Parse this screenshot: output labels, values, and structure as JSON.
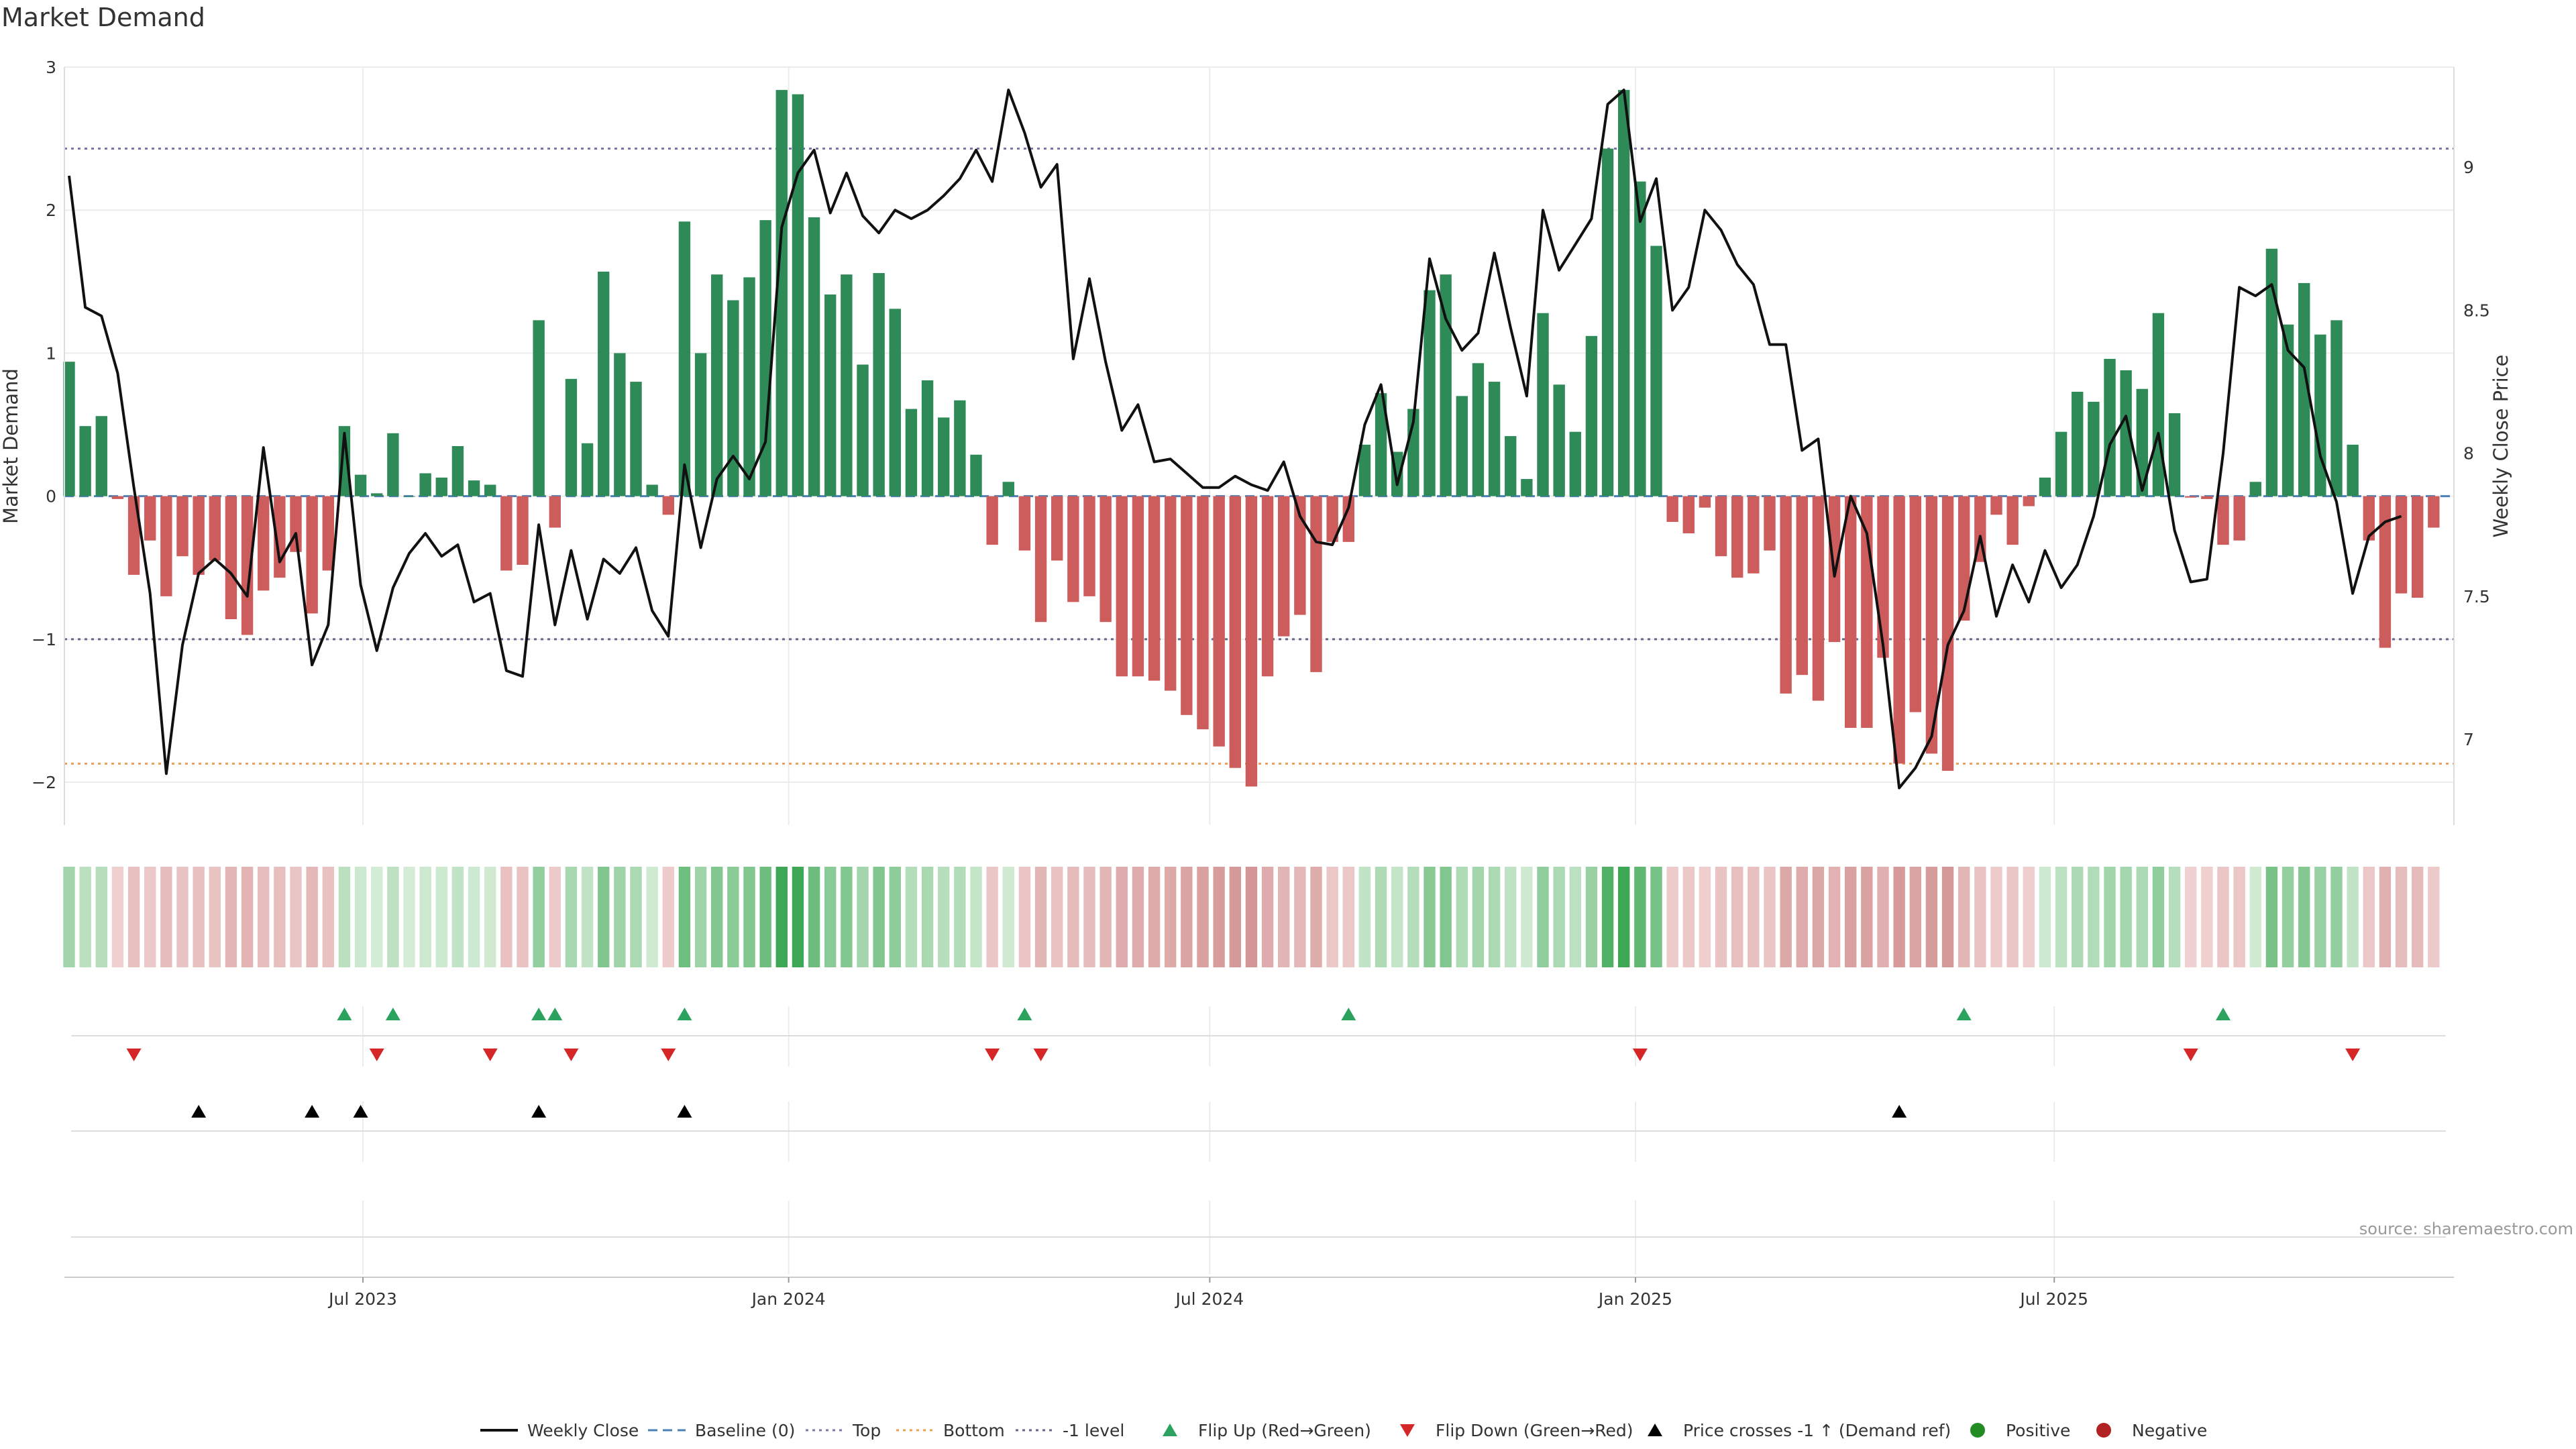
{
  "chart_data": {
    "type": "bar",
    "title": "Market Demand",
    "ylabel_left": "Market Demand",
    "ylabel_right": "Weekly Close Price",
    "ylim_left": [
      -2.3,
      3
    ],
    "ylim_right": [
      6.7,
      9.35
    ],
    "left_ticks": [
      {
        "value": 3,
        "label": "3"
      },
      {
        "value": 2,
        "label": "2"
      },
      {
        "value": 1,
        "label": "1"
      },
      {
        "value": 0,
        "label": "0"
      },
      {
        "value": -1,
        "label": "−1"
      },
      {
        "value": -2,
        "label": "−2"
      }
    ],
    "right_ticks": [
      {
        "value": 9,
        "label": "9"
      },
      {
        "value": 8.5,
        "label": "8.5"
      },
      {
        "value": 8,
        "label": "8"
      },
      {
        "value": 7.5,
        "label": "7.5"
      },
      {
        "value": 7,
        "label": "7"
      }
    ],
    "x_ticks": [
      {
        "date": "2023-07-01",
        "label": "Jul 2023"
      },
      {
        "date": "2024-01-01",
        "label": "Jan 2024"
      },
      {
        "date": "2024-07-01",
        "label": "Jul 2024"
      },
      {
        "date": "2025-01-01",
        "label": "Jan 2025"
      },
      {
        "date": "2025-07-01",
        "label": "Jul 2025"
      }
    ],
    "reference_lines": [
      {
        "name": "Top",
        "value": 2.43,
        "color": "#7777aa",
        "dash": "dot"
      },
      {
        "name": "-1 level",
        "value": -1,
        "color": "#666688",
        "dash": "dot"
      },
      {
        "name": "Bottom",
        "value": -1.87,
        "color": "#e8a05a",
        "dash": "dot"
      },
      {
        "name": "Baseline (0)",
        "value": 0,
        "color": "#4d7fb5",
        "dash": "dash"
      }
    ],
    "weeks": [
      "2023-02-24",
      "2023-03-03",
      "2023-03-10",
      "2023-03-17",
      "2023-03-24",
      "2023-03-31",
      "2023-04-07",
      "2023-04-14",
      "2023-04-21",
      "2023-04-28",
      "2023-05-05",
      "2023-05-12",
      "2023-05-19",
      "2023-05-26",
      "2023-06-02",
      "2023-06-09",
      "2023-06-16",
      "2023-06-23",
      "2023-06-30",
      "2023-07-07",
      "2023-07-14",
      "2023-07-21",
      "2023-07-28",
      "2023-08-04",
      "2023-08-11",
      "2023-08-18",
      "2023-08-25",
      "2023-09-01",
      "2023-09-08",
      "2023-09-15",
      "2023-09-22",
      "2023-09-29",
      "2023-10-06",
      "2023-10-13",
      "2023-10-20",
      "2023-10-27",
      "2023-11-03",
      "2023-11-10",
      "2023-11-17",
      "2023-11-24",
      "2023-12-01",
      "2023-12-08",
      "2023-12-15",
      "2023-12-22",
      "2023-12-29",
      "2024-01-05",
      "2024-01-12",
      "2024-01-19",
      "2024-01-26",
      "2024-02-02",
      "2024-02-09",
      "2024-02-16",
      "2024-02-23",
      "2024-03-01",
      "2024-03-08",
      "2024-03-15",
      "2024-03-22",
      "2024-03-29",
      "2024-04-05",
      "2024-04-12",
      "2024-04-19",
      "2024-04-26",
      "2024-05-03",
      "2024-05-10",
      "2024-05-17",
      "2024-05-24",
      "2024-05-31",
      "2024-06-07",
      "2024-06-14",
      "2024-06-21",
      "2024-06-28",
      "2024-07-05",
      "2024-07-12",
      "2024-07-19",
      "2024-07-26",
      "2024-08-02",
      "2024-08-09",
      "2024-08-16",
      "2024-08-23",
      "2024-08-30",
      "2024-09-06",
      "2024-09-13",
      "2024-09-20",
      "2024-09-27",
      "2024-10-04",
      "2024-10-11",
      "2024-10-18",
      "2024-10-25",
      "2024-11-01",
      "2024-11-08",
      "2024-11-15",
      "2024-11-22",
      "2024-11-29",
      "2024-12-06",
      "2024-12-13",
      "2024-12-20",
      "2024-12-27",
      "2025-01-03",
      "2025-01-10",
      "2025-01-17",
      "2025-01-24",
      "2025-01-31",
      "2025-02-07",
      "2025-02-14",
      "2025-02-21",
      "2025-02-28",
      "2025-03-07",
      "2025-03-14",
      "2025-03-21",
      "2025-03-28",
      "2025-04-04",
      "2025-04-11",
      "2025-04-18",
      "2025-04-25",
      "2025-05-02",
      "2025-05-09",
      "2025-05-16",
      "2025-05-23",
      "2025-05-30",
      "2025-06-06",
      "2025-06-13",
      "2025-06-20",
      "2025-06-27",
      "2025-07-04",
      "2025-07-11",
      "2025-07-18",
      "2025-07-25",
      "2025-08-01",
      "2025-08-08",
      "2025-08-15",
      "2025-08-22",
      "2025-08-29",
      "2025-09-05",
      "2025-09-12",
      "2025-09-19",
      "2025-09-26",
      "2025-10-03",
      "2025-10-10",
      "2025-10-17",
      "2025-10-24",
      "2025-10-31",
      "2025-11-07",
      "2025-11-14",
      "2025-11-21",
      "2025-11-28",
      "2025-12-05",
      "2025-12-12",
      "2025-12-19"
    ],
    "demand": [
      0.94,
      0.49,
      0.56,
      -0.02,
      -0.55,
      -0.31,
      -0.7,
      -0.42,
      -0.55,
      -0.45,
      -0.86,
      -0.97,
      -0.66,
      -0.57,
      -0.39,
      -0.82,
      -0.52,
      0.49,
      0.15,
      0.02,
      0.44,
      0.0,
      0.16,
      0.13,
      0.35,
      0.11,
      0.08,
      -0.52,
      -0.48,
      1.23,
      -0.22,
      0.82,
      0.37,
      1.57,
      1.0,
      0.8,
      0.08,
      -0.13,
      1.92,
      1.0,
      1.55,
      1.37,
      1.53,
      1.93,
      2.84,
      2.81,
      1.95,
      1.41,
      1.55,
      0.92,
      1.56,
      1.31,
      0.61,
      0.81,
      0.55,
      0.67,
      0.29,
      -0.34,
      0.1,
      -0.38,
      -0.88,
      -0.45,
      -0.74,
      -0.7,
      -0.88,
      -1.26,
      -1.26,
      -1.29,
      -1.36,
      -1.53,
      -1.63,
      -1.75,
      -1.9,
      -2.03,
      -1.26,
      -0.98,
      -0.83,
      -1.23,
      -0.32,
      -0.32,
      0.36,
      0.72,
      0.31,
      0.61,
      1.44,
      1.55,
      0.7,
      0.93,
      0.8,
      0.42,
      0.12,
      1.28,
      0.78,
      0.45,
      1.12,
      2.43,
      2.84,
      2.2,
      1.75,
      -0.18,
      -0.26,
      -0.08,
      -0.42,
      -0.57,
      -0.54,
      -0.38,
      -1.38,
      -1.25,
      -1.43,
      -1.02,
      -1.62,
      -1.62,
      -1.13,
      -1.87,
      -1.51,
      -1.8,
      -1.92,
      -0.87,
      -0.46,
      -0.13,
      -0.34,
      -0.07,
      0.13,
      0.45,
      0.73,
      0.66,
      0.96,
      0.88,
      0.75,
      1.28,
      0.58,
      -0.01,
      -0.02,
      -0.34,
      -0.31,
      0.1,
      1.73,
      1.2,
      1.49,
      1.13,
      1.23,
      0.36,
      -0.31,
      -1.06,
      -0.68,
      -0.71,
      -0.22
    ],
    "weekly_close": [
      8.97,
      8.51,
      8.48,
      8.28,
      7.88,
      7.51,
      6.88,
      7.33,
      7.58,
      7.63,
      7.58,
      7.5,
      8.02,
      7.62,
      7.72,
      7.26,
      7.4,
      8.07,
      7.54,
      7.31,
      7.53,
      7.65,
      7.72,
      7.64,
      7.68,
      7.48,
      7.51,
      7.24,
      7.22,
      7.75,
      7.4,
      7.66,
      7.42,
      7.63,
      7.58,
      7.67,
      7.45,
      7.36,
      7.96,
      7.67,
      7.91,
      7.99,
      7.91,
      8.04,
      8.79,
      8.98,
      9.06,
      8.84,
      8.98,
      8.83,
      8.77,
      8.85,
      8.82,
      8.85,
      8.9,
      8.96,
      9.06,
      8.95,
      9.27,
      9.12,
      8.93,
      9.01,
      8.33,
      8.61,
      8.32,
      8.08,
      8.17,
      7.97,
      7.98,
      7.93,
      7.88,
      7.88,
      7.92,
      7.89,
      7.87,
      7.97,
      7.78,
      7.69,
      7.68,
      7.81,
      8.1,
      8.24,
      7.89,
      8.11,
      8.68,
      8.47,
      8.36,
      8.42,
      8.7,
      8.44,
      8.2,
      8.85,
      8.64,
      8.73,
      8.82,
      9.22,
      9.27,
      8.81,
      8.96,
      8.5,
      8.58,
      8.85,
      8.78,
      8.66,
      8.59,
      8.38,
      8.38,
      8.01,
      8.05,
      7.57,
      7.85,
      7.72,
      7.33,
      6.83,
      6.9,
      7.01,
      7.33,
      7.45,
      7.71,
      7.43,
      7.61,
      7.48,
      7.66,
      7.53,
      7.61,
      7.78,
      8.03,
      8.13,
      7.87,
      8.07,
      7.73,
      7.55,
      7.56,
      8.0,
      8.58,
      8.55,
      8.59,
      8.36,
      8.3,
      7.99,
      7.83,
      7.51,
      7.71,
      7.76,
      7.78
    ],
    "flip_up_weeks": [
      "2023-06-23",
      "2023-07-14",
      "2023-09-15",
      "2023-09-22",
      "2023-11-17",
      "2024-04-12",
      "2024-08-30",
      "2025-05-23",
      "2025-09-12"
    ],
    "flip_down_weeks": [
      "2023-03-24",
      "2023-07-07",
      "2023-08-25",
      "2023-09-29",
      "2023-11-10",
      "2024-03-29",
      "2024-04-19",
      "2025-01-03",
      "2025-08-29",
      "2025-11-07"
    ],
    "price_cross_weeks": [
      "2023-04-21",
      "2023-06-09",
      "2023-06-30",
      "2023-09-15",
      "2023-11-17",
      "2025-04-25"
    ],
    "colors": {
      "positive_bar": "#2e8b57",
      "negative_bar": "#cd5c5c",
      "price_line": "#111111",
      "flip_up": "#2ca25f",
      "flip_down": "#d62728",
      "price_cross": "#000000",
      "positive_dot": "#228b22",
      "negative_dot": "#b22222"
    },
    "legend": [
      {
        "key": "line",
        "label": "Weekly Close"
      },
      {
        "key": "baseline",
        "label": "Baseline (0)"
      },
      {
        "key": "top",
        "label": "Top"
      },
      {
        "key": "bottom",
        "label": "Bottom"
      },
      {
        "key": "minus1",
        "label": "-1 level"
      },
      {
        "key": "flipup",
        "label": "Flip Up (Red→Green)"
      },
      {
        "key": "flipdown",
        "label": "Flip Down (Green→Red)"
      },
      {
        "key": "cross",
        "label": "Price crosses -1 ↑ (Demand ref)"
      },
      {
        "key": "pos",
        "label": "Positive"
      },
      {
        "key": "neg",
        "label": "Negative"
      }
    ],
    "source": "source: sharemaestro.com"
  }
}
